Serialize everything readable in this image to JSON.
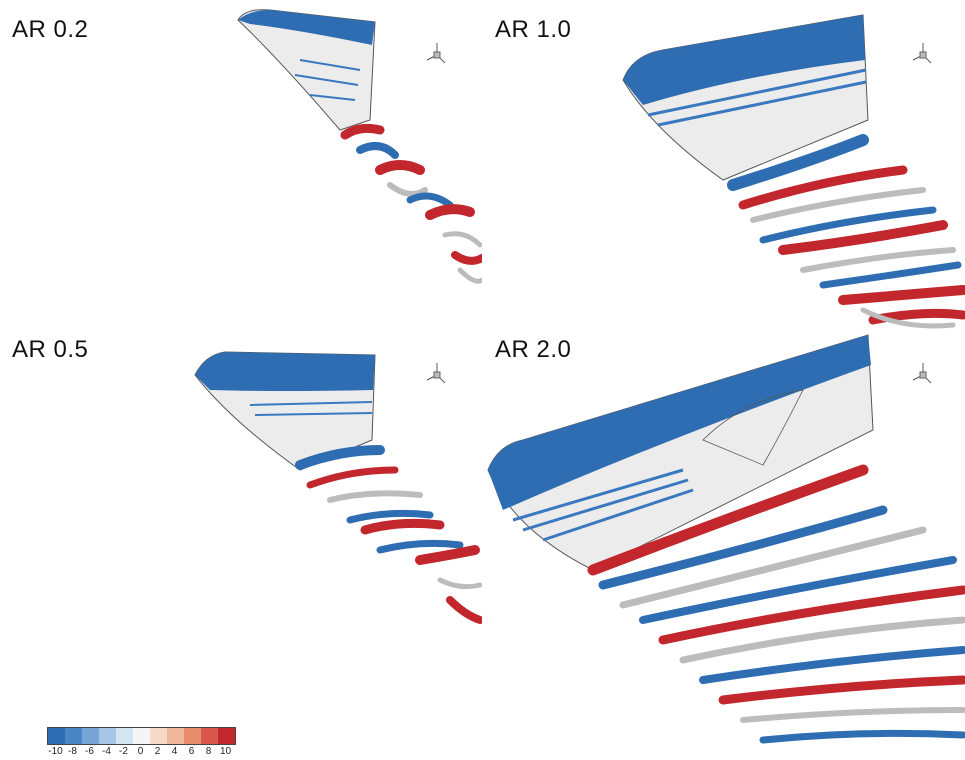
{
  "panels": [
    {
      "id": "ar02",
      "label": "AR 0.2"
    },
    {
      "id": "ar10",
      "label": "AR 1.0"
    },
    {
      "id": "ar05",
      "label": "AR 0.5"
    },
    {
      "id": "ar20",
      "label": "AR 2.0"
    }
  ],
  "axes_triad": {
    "x": "x",
    "y": "y",
    "z": "z"
  },
  "legend": {
    "ticks": [
      "-10",
      "-8",
      "-6",
      "-4",
      "-2",
      "0",
      "2",
      "4",
      "6",
      "8",
      "10"
    ],
    "colors": [
      "#2f6db3",
      "#4a86c4",
      "#74a5d4",
      "#a4c6e4",
      "#d3e4f2",
      "#f5f5f5",
      "#f6d9c8",
      "#f1b79a",
      "#e88c6c",
      "#d8574a",
      "#c1272d"
    ]
  }
}
